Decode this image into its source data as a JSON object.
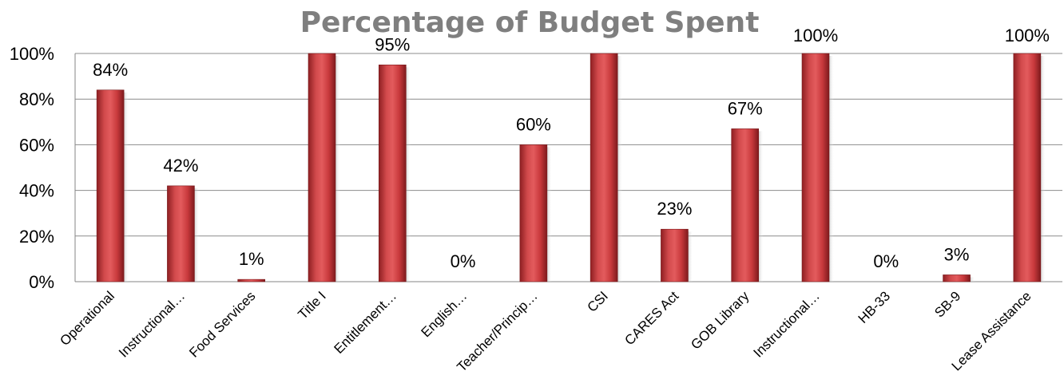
{
  "chart_data": {
    "type": "bar",
    "title": "Percentage of Budget Spent",
    "xlabel": "",
    "ylabel": "",
    "ylim": [
      0,
      100
    ],
    "yticks": [
      "0%",
      "20%",
      "40%",
      "60%",
      "80%",
      "100%"
    ],
    "ytick_values": [
      0,
      20,
      40,
      60,
      80,
      100
    ],
    "grid": true,
    "legend": "none",
    "bar_color": "#c0393b",
    "categories": [
      "Operational",
      "Instructional…",
      "Food Services",
      "Title I",
      "Entitlement…",
      "English…",
      "Teacher/Princip…",
      "CSI",
      "CARES Act",
      "GOB Library",
      "Instructional…",
      "HB-33",
      "SB-9",
      "Lease Assistance"
    ],
    "values": [
      84,
      42,
      1,
      100,
      95,
      0,
      60,
      100,
      23,
      67,
      100,
      0,
      3,
      100
    ],
    "data_labels": [
      "84%",
      "42%",
      "1%",
      "",
      "95%",
      "0%",
      "60%",
      "",
      "23%",
      "67%",
      "100%",
      "0%",
      "3%",
      "100%"
    ]
  }
}
